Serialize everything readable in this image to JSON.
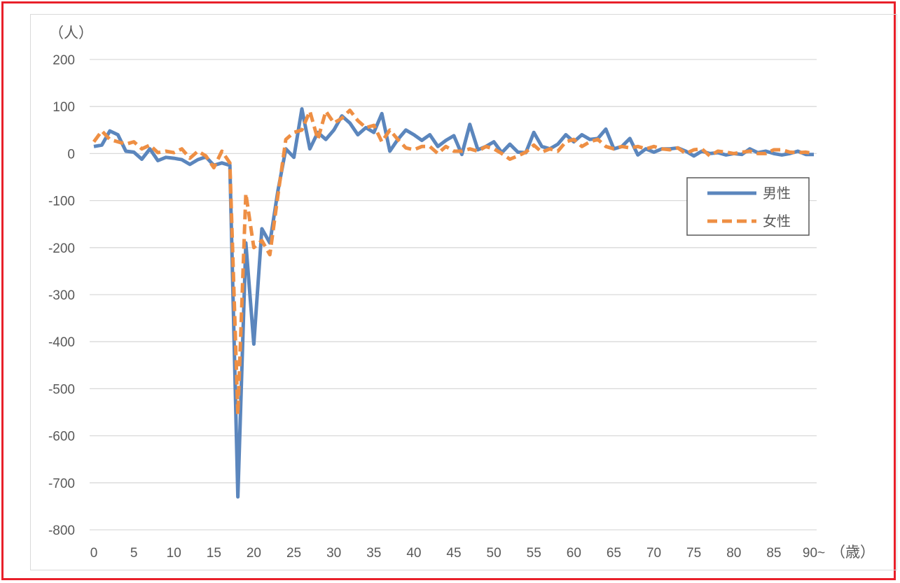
{
  "chart_data": {
    "type": "line",
    "y_unit_label": "（人）",
    "x_unit_label": "（歳）",
    "ylim": [
      -800,
      200
    ],
    "yticks": [
      200,
      100,
      0,
      -100,
      -200,
      -300,
      -400,
      -500,
      -600,
      -700,
      -800
    ],
    "xticks": [
      "0",
      "5",
      "10",
      "15",
      "20",
      "25",
      "30",
      "35",
      "40",
      "45",
      "50",
      "55",
      "60",
      "65",
      "70",
      "75",
      "80",
      "85",
      "90~"
    ],
    "x": [
      0,
      1,
      2,
      3,
      4,
      5,
      6,
      7,
      8,
      9,
      10,
      11,
      12,
      13,
      14,
      15,
      16,
      17,
      18,
      19,
      20,
      21,
      22,
      23,
      24,
      25,
      26,
      27,
      28,
      29,
      30,
      31,
      32,
      33,
      34,
      35,
      36,
      37,
      38,
      39,
      40,
      41,
      42,
      43,
      44,
      45,
      46,
      47,
      48,
      49,
      50,
      51,
      52,
      53,
      54,
      55,
      56,
      57,
      58,
      59,
      60,
      61,
      62,
      63,
      64,
      65,
      66,
      67,
      68,
      69,
      70,
      71,
      72,
      73,
      74,
      75,
      76,
      77,
      78,
      79,
      80,
      81,
      82,
      83,
      84,
      85,
      86,
      87,
      88,
      89,
      90
    ],
    "grid": true,
    "legend_position": "right",
    "series": [
      {
        "name": "男性",
        "color": "#5b86bd",
        "dash": "solid",
        "values": [
          15,
          18,
          48,
          40,
          5,
          3,
          -12,
          10,
          -15,
          -8,
          -10,
          -13,
          -23,
          -13,
          -7,
          -25,
          -20,
          -25,
          -730,
          -190,
          -405,
          -160,
          -190,
          -80,
          10,
          -8,
          95,
          10,
          45,
          30,
          50,
          80,
          65,
          40,
          55,
          45,
          85,
          5,
          30,
          50,
          40,
          28,
          40,
          15,
          28,
          38,
          -2,
          62,
          8,
          15,
          25,
          2,
          20,
          3,
          2,
          45,
          15,
          10,
          20,
          40,
          25,
          40,
          30,
          32,
          52,
          10,
          15,
          32,
          -3,
          10,
          3,
          10,
          10,
          12,
          5,
          -5,
          5,
          0,
          2,
          -3,
          0,
          -2,
          10,
          2,
          5,
          0,
          -3,
          0,
          5,
          -2,
          -2
        ]
      },
      {
        "name": "女性",
        "color": "#ee8f44",
        "dash": "dashed",
        "values": [
          25,
          48,
          30,
          25,
          20,
          25,
          10,
          18,
          2,
          5,
          2,
          10,
          -10,
          5,
          -5,
          -30,
          5,
          -20,
          -555,
          -85,
          -200,
          -185,
          -215,
          -90,
          30,
          45,
          50,
          90,
          30,
          90,
          65,
          75,
          92,
          70,
          55,
          60,
          25,
          50,
          30,
          12,
          8,
          15,
          15,
          0,
          15,
          5,
          5,
          10,
          5,
          15,
          10,
          0,
          -12,
          -5,
          3,
          18,
          3,
          10,
          5,
          25,
          30,
          15,
          25,
          30,
          15,
          10,
          15,
          12,
          15,
          10,
          15,
          10,
          8,
          12,
          0,
          8,
          10,
          -5,
          5,
          3,
          0,
          3,
          5,
          0,
          0,
          8,
          8,
          3,
          2,
          3,
          0
        ]
      }
    ]
  }
}
